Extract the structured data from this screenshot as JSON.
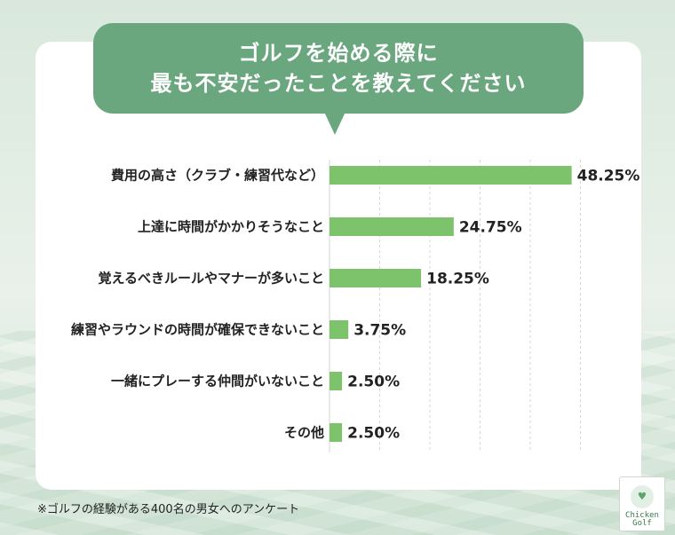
{
  "title_lines": [
    "ゴルフを始める際に",
    "最も不安だったことを教えてください"
  ],
  "footnote": "※ゴルフの経験がある400名の男女へのアンケート",
  "logo_text": [
    "Chicken",
    "Golf"
  ],
  "colors": {
    "bar": "#7cc36c",
    "bubble": "#6aa67e",
    "grid": "#d5d5d5"
  },
  "chart_data": {
    "type": "bar",
    "orientation": "horizontal",
    "categories": [
      "費用の高さ（クラブ・練習代など）",
      "上達に時間がかかりそうなこと",
      "覚えるべきルールやマナーが多いこと",
      "練習やラウンドの時間が確保できないこと",
      "一緒にプレーする仲間がいないこと",
      "その他"
    ],
    "values": [
      48.25,
      24.75,
      18.25,
      3.75,
      2.5,
      2.5
    ],
    "value_labels": [
      "48.25%",
      "24.75%",
      "18.25%",
      "3.75%",
      "2.50%",
      "2.50%"
    ],
    "unit": "%",
    "xlim": [
      0,
      50
    ],
    "grid": true
  }
}
